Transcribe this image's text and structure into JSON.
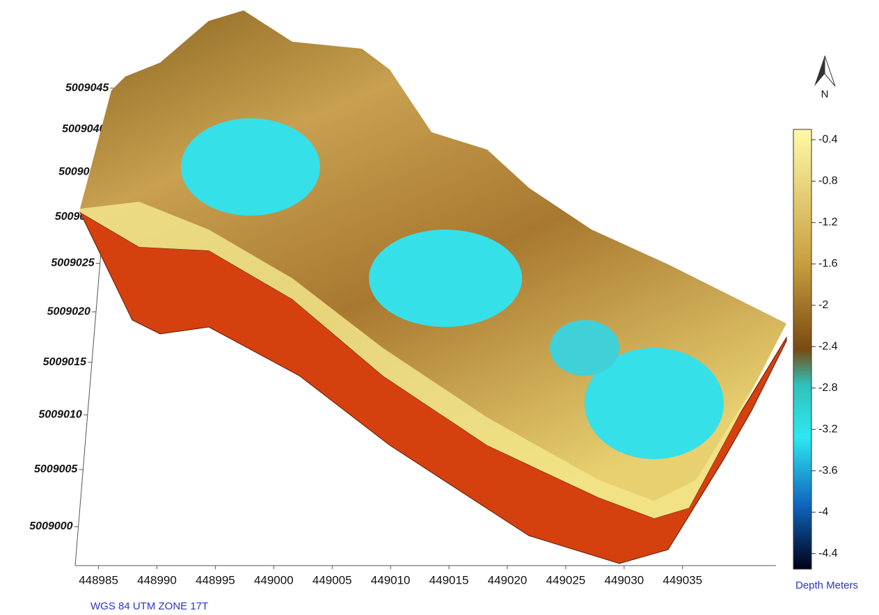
{
  "chart_data": {
    "type": "surface",
    "caption": "WGS 84 UTM  ZONE 17T",
    "colorbar_label": "Depth Meters",
    "xticks": [
      448985,
      448990,
      448995,
      449000,
      449005,
      449010,
      449015,
      449020,
      449025,
      449030,
      449035
    ],
    "xlim": [
      448983,
      449043
    ],
    "yticks": [
      5009000,
      5009005,
      5009010,
      5009015,
      5009020,
      5009025,
      5009030,
      5009035,
      5009040,
      5009045
    ],
    "zlim": [
      -4.55,
      -0.3
    ],
    "zticks": [
      -0.4,
      -0.8,
      -1.2,
      -1.6,
      -2,
      -2.4,
      -2.8,
      -3.2,
      -3.6,
      -4,
      -4.4
    ]
  }
}
